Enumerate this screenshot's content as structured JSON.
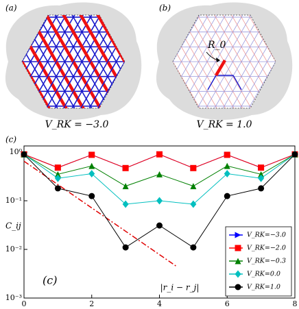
{
  "panels": [
    {
      "label": "(a)",
      "caption": "V_RK = −3.0"
    },
    {
      "label": "(b)",
      "caption": "V_RK = 1.0",
      "annotation": "R_0"
    }
  ],
  "chart_data": {
    "type": "line",
    "panel_label": "(c)",
    "inner_label": "(c)",
    "x_label": "|r_i − r_j|",
    "y_label": "C_ij",
    "x": [
      0,
      1,
      2,
      3,
      4,
      5,
      6,
      7,
      8
    ],
    "xlim": [
      0,
      8
    ],
    "xticks": [
      0,
      2,
      4,
      6,
      8
    ],
    "ylim": [
      0.001,
      1.34
    ],
    "log_y": true,
    "yticks": [
      {
        "value": 0.001,
        "label": "10⁻³"
      },
      {
        "value": 0.01,
        "label": "10⁻²"
      },
      {
        "value": 0.1,
        "label": "10⁻¹"
      },
      {
        "value": 1,
        "label": "10⁰"
      }
    ],
    "legend": "lower right",
    "series": [
      {
        "name": "V_RK=−3.0",
        "color": "#0000ff",
        "marker": "triangle-right",
        "values": [
          0.9,
          0.48,
          0.88,
          0.47,
          0.9,
          0.47,
          0.88,
          0.48,
          0.9
        ]
      },
      {
        "name": "V_RK=−2.0",
        "color": "#ff0000",
        "marker": "square",
        "values": [
          0.9,
          0.48,
          0.88,
          0.47,
          0.9,
          0.47,
          0.88,
          0.48,
          0.9
        ]
      },
      {
        "name": "V_RK=−0.3",
        "color": "#008000",
        "marker": "triangle-up",
        "values": [
          0.9,
          0.35,
          0.52,
          0.2,
          0.35,
          0.2,
          0.52,
          0.35,
          0.9
        ]
      },
      {
        "name": "V_RK=0.0",
        "color": "#00bfbf",
        "marker": "diamond",
        "values": [
          0.9,
          0.29,
          0.36,
          0.085,
          0.1,
          0.085,
          0.36,
          0.29,
          0.9
        ]
      },
      {
        "name": "V_RK=1.0",
        "color": "#000000",
        "marker": "circle",
        "values": [
          0.9,
          0.18,
          0.125,
          0.011,
          0.031,
          0.011,
          0.125,
          0.18,
          0.9
        ]
      }
    ],
    "fit": {
      "color": "#e00000",
      "x": [
        0,
        4.5
      ],
      "values": [
        0.65,
        0.0045
      ]
    }
  }
}
